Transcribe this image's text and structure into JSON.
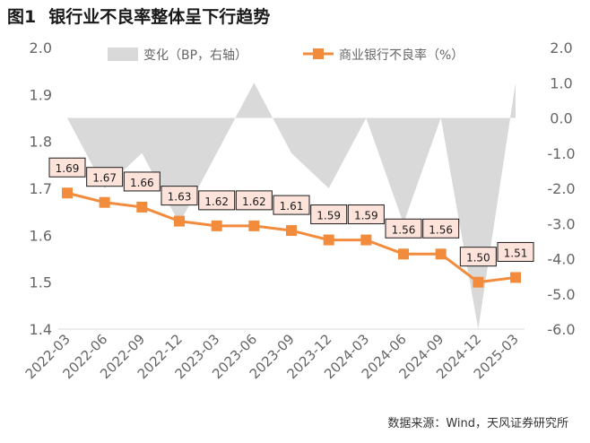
{
  "title": {
    "number": "图1",
    "text": "银行业不良率整体呈下行趋势"
  },
  "source": "数据来源：Wind，天风证券研究所",
  "colors": {
    "area": "#d9d9d9",
    "line": "#f28c3c",
    "label_bg": "#fde3da",
    "label_border": "#1a1a1a"
  },
  "chart_data": {
    "type": "line",
    "categories": [
      "2022-03",
      "2022-06",
      "2022-09",
      "2022-12",
      "2023-03",
      "2023-06",
      "2023-09",
      "2023-12",
      "2024-03",
      "2024-06",
      "2024-09",
      "2024-12",
      "2025-03"
    ],
    "series": [
      {
        "name": "变化（BP，右轴）",
        "type": "area",
        "axis": "right",
        "values": [
          0.0,
          -2.0,
          -1.0,
          -3.0,
          -1.0,
          1.0,
          -1.0,
          -2.0,
          0.0,
          -3.0,
          0.0,
          -6.0,
          1.0
        ]
      },
      {
        "name": "商业银行不良率（%）",
        "type": "line",
        "axis": "left",
        "values": [
          1.69,
          1.67,
          1.66,
          1.63,
          1.62,
          1.62,
          1.61,
          1.59,
          1.59,
          1.56,
          1.56,
          1.5,
          1.51
        ],
        "labels": [
          "1.69",
          "1.67",
          "1.66",
          "1.63",
          "1.62",
          "1.62",
          "1.61",
          "1.59",
          "1.59",
          "1.56",
          "1.56",
          "1.50",
          "1.51"
        ]
      }
    ],
    "y_left": {
      "min": 1.4,
      "max": 2.0,
      "ticks": [
        "1.4",
        "1.5",
        "1.6",
        "1.7",
        "1.8",
        "1.9",
        "2.0"
      ]
    },
    "y_right": {
      "min": -6.0,
      "max": 2.0,
      "ticks": [
        "-6.0",
        "-5.0",
        "-4.0",
        "-3.0",
        "-2.0",
        "-1.0",
        "0.0",
        "1.0",
        "2.0"
      ]
    },
    "legend_position": "top"
  }
}
